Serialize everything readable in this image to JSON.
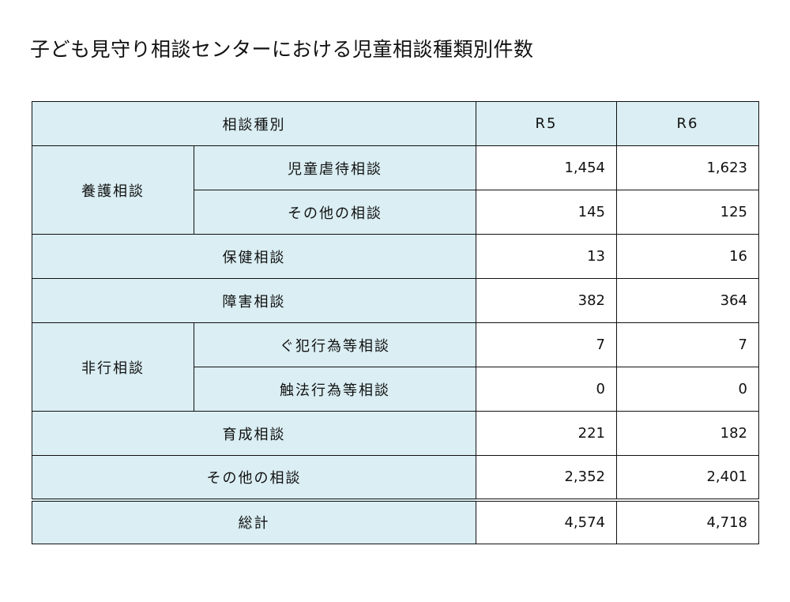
{
  "title": "子ども見守り相談センターにおける児童相談種類別件数",
  "table": {
    "header": {
      "category": "相談種別",
      "r5": "R5",
      "r6": "R6"
    },
    "rows": {
      "yogo_group": "養護相談",
      "gyakutai": {
        "label": "児童虐待相談",
        "r5": "1,454",
        "r6": "1,623"
      },
      "yogo_other": {
        "label": "その他の相談",
        "r5": "145",
        "r6": "125"
      },
      "hoken": {
        "label": "保健相談",
        "r5": "13",
        "r6": "16"
      },
      "shogai": {
        "label": "障害相談",
        "r5": "382",
        "r6": "364"
      },
      "hiko_group": "非行相談",
      "guhan": {
        "label": "ぐ犯行為等相談",
        "r5": "7",
        "r6": "7"
      },
      "shokuho": {
        "label": "触法行為等相談",
        "r5": "0",
        "r6": "0"
      },
      "ikusei": {
        "label": "育成相談",
        "r5": "221",
        "r6": "182"
      },
      "sonota": {
        "label": "その他の相談",
        "r5": "2,352",
        "r6": "2,401"
      },
      "total": {
        "label": "総計",
        "r5": "4,574",
        "r6": "4,718"
      }
    }
  }
}
